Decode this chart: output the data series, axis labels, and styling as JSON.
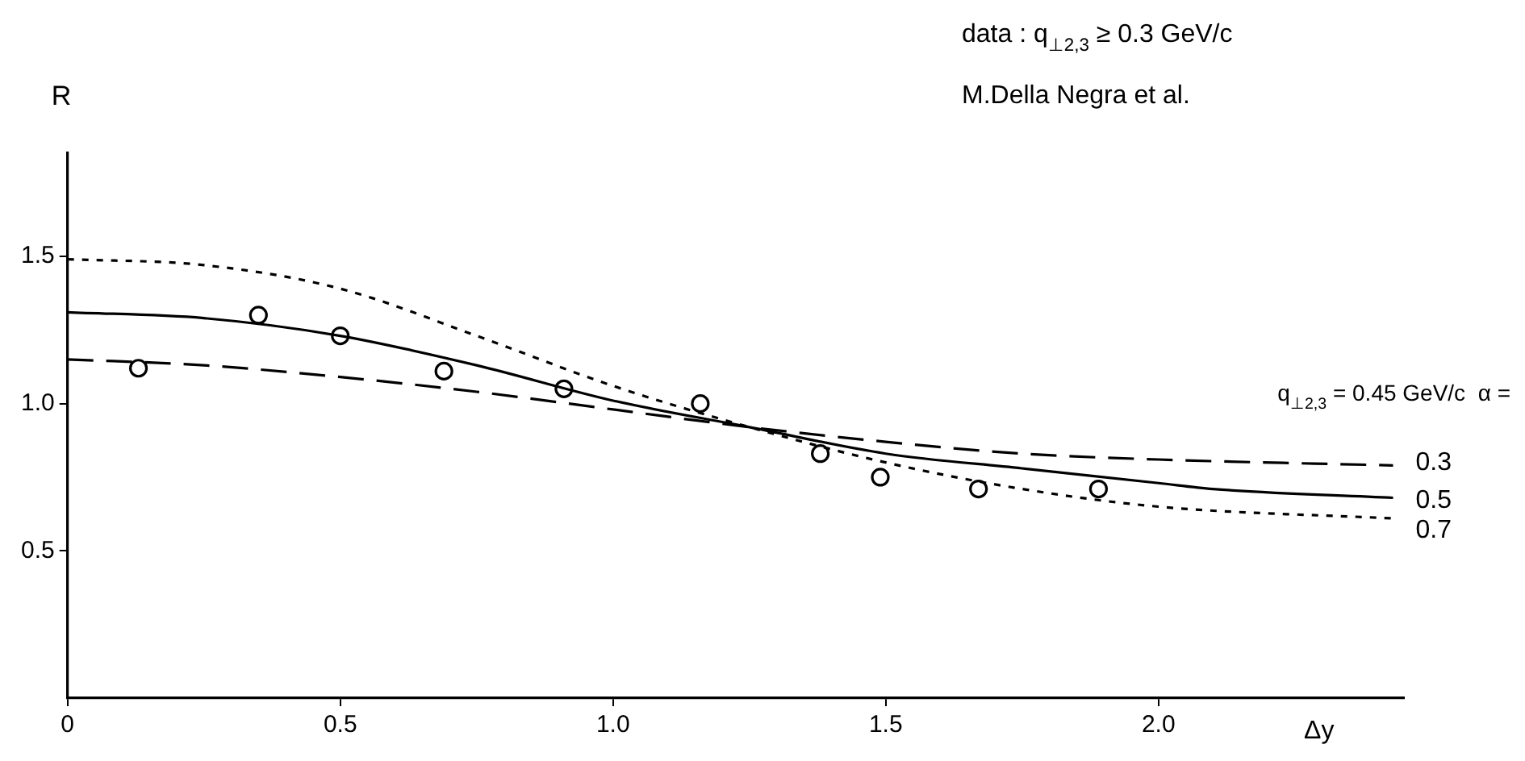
{
  "chart_data": {
    "type": "line",
    "xlabel": "Δy",
    "ylabel": "R",
    "legend_title": "q$_{⊥2,3}$ = 0.45 GeV/c  α =",
    "annotations": [
      "data : q$_{⊥2,3}$ ≥ 0.3 GeV/c",
      "M.Della Negra et al."
    ],
    "xlim": [
      0,
      2.45
    ],
    "ylim": [
      0,
      1.85
    ],
    "xticks": [
      0,
      0.5,
      {
        "value": 1,
        "label": "1.0"
      },
      1.5,
      {
        "value": 2,
        "label": "2.0"
      }
    ],
    "yticks": [
      0.5,
      {
        "value": 1,
        "label": "1.0"
      },
      1.5
    ],
    "grid": false,
    "legend": false,
    "series": [
      {
        "name": "0.3",
        "type": "line",
        "color": "#000000",
        "line_style": "dashed",
        "marker": "none",
        "x": [
          0,
          0.25,
          0.5,
          0.75,
          1.0,
          1.25,
          1.5,
          1.75,
          2.0,
          2.43
        ],
        "values": [
          1.15,
          1.13,
          1.09,
          1.04,
          0.98,
          0.92,
          0.87,
          0.83,
          0.81,
          0.79
        ]
      },
      {
        "name": "0.5",
        "type": "line",
        "color": "#000000",
        "line_style": "solid",
        "marker": "none",
        "x": [
          0,
          0.25,
          0.5,
          0.75,
          1.0,
          1.25,
          1.5,
          1.75,
          2.0,
          2.1,
          2.43
        ],
        "values": [
          1.31,
          1.29,
          1.23,
          1.13,
          1.01,
          0.92,
          0.83,
          0.78,
          0.73,
          0.71,
          0.68
        ]
      },
      {
        "name": "0.7",
        "type": "line",
        "color": "#000000",
        "line_style": "dotted",
        "marker": "none",
        "x": [
          0,
          0.25,
          0.5,
          0.75,
          1.0,
          1.25,
          1.5,
          1.75,
          2.0,
          2.43
        ],
        "values": [
          1.49,
          1.47,
          1.39,
          1.23,
          1.06,
          0.92,
          0.8,
          0.71,
          0.65,
          0.61
        ]
      },
      {
        "type": "scatter",
        "color": "#000000",
        "marker": "circle",
        "x": [
          0.13,
          0.35,
          0.5,
          0.69,
          0.91,
          1.16,
          1.38,
          1.49,
          1.67,
          1.89
        ],
        "values": [
          1.12,
          1.3,
          1.23,
          1.11,
          1.05,
          1.0,
          0.83,
          0.75,
          0.71,
          0.71
        ]
      }
    ]
  }
}
